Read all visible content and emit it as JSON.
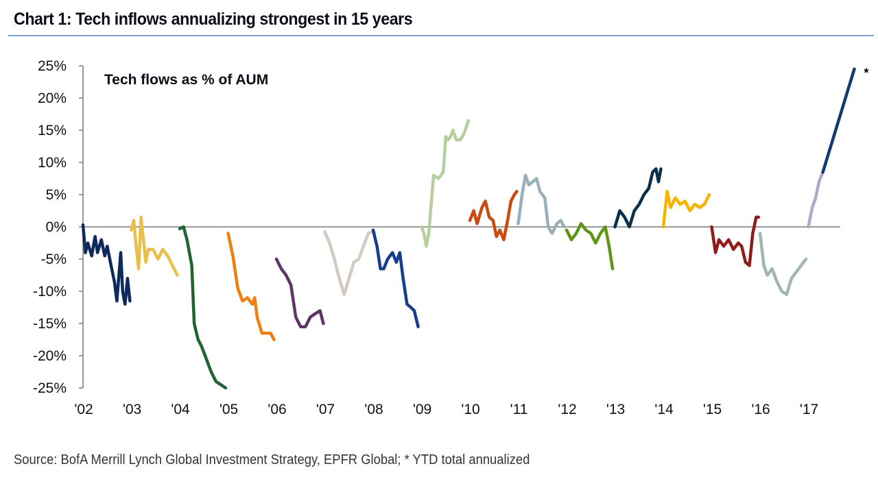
{
  "header": {
    "title": "Chart 1: Tech inflows annualizing strongest in 15 years"
  },
  "footer": {
    "source": "Source: BofA Merrill Lynch Global Investment Strategy, EPFR Global; * YTD total annualized"
  },
  "chart_data": {
    "type": "line",
    "title": "Chart 1: Tech inflows annualizing strongest in 15 years",
    "inner_title": "Tech flows as % of AUM",
    "xlabel": "",
    "ylabel": "",
    "ylim": [
      -25,
      25
    ],
    "xlim": [
      2002,
      2018
    ],
    "y_ticks": [
      25,
      20,
      15,
      10,
      5,
      0,
      -5,
      -10,
      -15,
      -20,
      -25
    ],
    "y_tick_labels": [
      "25%",
      "20%",
      "15%",
      "10%",
      "5%",
      "0%",
      "-5%",
      "-10%",
      "-15%",
      "-20%",
      "-25%"
    ],
    "x_ticks": [
      2002,
      2003,
      2004,
      2005,
      2006,
      2007,
      2008,
      2009,
      2010,
      2011,
      2012,
      2013,
      2014,
      2015,
      2016,
      2017
    ],
    "x_tick_labels": [
      "'02",
      "'03",
      "'04",
      "'05",
      "'06",
      "'07",
      "'08",
      "'09",
      "'10",
      "'11",
      "'12",
      "'13",
      "'14",
      "'15",
      "'16",
      "'17"
    ],
    "grid": false,
    "zero_line": true,
    "annotation": "*",
    "series": [
      {
        "name": "2002",
        "color": "#0e2a5c",
        "x": [
          0,
          0.05,
          0.1,
          0.18,
          0.25,
          0.3,
          0.38,
          0.45,
          0.5,
          0.58,
          0.65,
          0.7,
          0.78,
          0.82,
          0.87,
          0.92,
          0.97
        ],
        "values": [
          0.3,
          -4,
          -2.5,
          -4.5,
          -1.5,
          -4,
          -2,
          -4.5,
          -3,
          -6,
          -8.5,
          -11.5,
          -4,
          -10,
          -12,
          -8,
          -11.5
        ]
      },
      {
        "name": "2003",
        "color": "#e6c04a",
        "x": [
          0,
          0.05,
          0.1,
          0.15,
          0.2,
          0.25,
          0.3,
          0.35,
          0.45,
          0.55,
          0.65,
          0.75,
          0.85,
          0.95
        ],
        "values": [
          -0.5,
          1,
          -3,
          -6.5,
          1.5,
          -2,
          -5.5,
          -3.5,
          -3.5,
          -5,
          -3.5,
          -4.5,
          -6,
          -7.5
        ]
      },
      {
        "name": "2004",
        "color": "#1f6433",
        "x": [
          0,
          0.08,
          0.15,
          0.25,
          0.3,
          0.38,
          0.45,
          0.55,
          0.65,
          0.75,
          0.85,
          0.95
        ],
        "values": [
          -0.3,
          0,
          -2,
          -6,
          -15,
          -17.5,
          -18.5,
          -20.5,
          -22.5,
          -24,
          -24.5,
          -25
        ]
      },
      {
        "name": "2005",
        "color": "#f07f12",
        "x": [
          0,
          0.1,
          0.2,
          0.3,
          0.4,
          0.5,
          0.55,
          0.6,
          0.7,
          0.78,
          0.88,
          0.95
        ],
        "values": [
          -1,
          -4.5,
          -9.5,
          -11.5,
          -11,
          -12,
          -11,
          -14,
          -16.5,
          -16.5,
          -16.5,
          -17.5
        ]
      },
      {
        "name": "2006",
        "color": "#5e3469",
        "x": [
          0,
          0.1,
          0.2,
          0.3,
          0.4,
          0.5,
          0.6,
          0.7,
          0.8,
          0.9,
          0.97
        ],
        "values": [
          -5,
          -6.5,
          -7.5,
          -9,
          -14,
          -15.5,
          -15.5,
          -14,
          -13.5,
          -13,
          -15
        ]
      },
      {
        "name": "2007",
        "color": "#d2cbc1",
        "x": [
          0,
          0.1,
          0.2,
          0.3,
          0.4,
          0.5,
          0.6,
          0.7,
          0.8,
          0.9,
          0.97
        ],
        "values": [
          -0.8,
          -2.5,
          -5,
          -8,
          -10.5,
          -8,
          -5.5,
          -5,
          -3,
          -1,
          -0.8
        ]
      },
      {
        "name": "2008",
        "color": "#173d8c",
        "x": [
          0,
          0.08,
          0.15,
          0.22,
          0.3,
          0.4,
          0.48,
          0.55,
          0.62,
          0.7,
          0.78,
          0.85,
          0.93
        ],
        "values": [
          -0.5,
          -3,
          -6.5,
          -6.5,
          -5,
          -4,
          -5.5,
          -4,
          -8,
          -12,
          -12.5,
          -13,
          -15.5
        ]
      },
      {
        "name": "2009",
        "color": "#b6cf9f",
        "x": [
          0,
          0.05,
          0.1,
          0.15,
          0.25,
          0.35,
          0.45,
          0.5,
          0.55,
          0.6,
          0.65,
          0.72,
          0.8,
          0.88,
          0.97
        ],
        "values": [
          0,
          -1,
          -3,
          -1,
          8,
          7.5,
          8.5,
          14,
          13.5,
          14,
          15,
          13.5,
          13.5,
          14.5,
          16.5
        ]
      },
      {
        "name": "2010",
        "color": "#c94b0d",
        "x": [
          0,
          0.08,
          0.15,
          0.25,
          0.32,
          0.4,
          0.48,
          0.55,
          0.62,
          0.7,
          0.78,
          0.85,
          0.92,
          0.97
        ],
        "values": [
          1,
          2.5,
          0.5,
          3,
          4,
          1.5,
          1,
          -1.5,
          -0.5,
          -2,
          1,
          4,
          5,
          5.5
        ]
      },
      {
        "name": "2011",
        "color": "#9aafba",
        "x": [
          0,
          0.08,
          0.15,
          0.22,
          0.3,
          0.38,
          0.45,
          0.55,
          0.62,
          0.7,
          0.8,
          0.88,
          0.95
        ],
        "values": [
          0.5,
          5,
          8,
          6.5,
          7,
          7.5,
          5.5,
          4.5,
          0,
          -1,
          0.5,
          1,
          0
        ]
      },
      {
        "name": "2012",
        "color": "#5f941a",
        "x": [
          0,
          0.1,
          0.2,
          0.3,
          0.4,
          0.5,
          0.6,
          0.7,
          0.8,
          0.88,
          0.95
        ],
        "values": [
          -0.5,
          -2,
          -1,
          0.5,
          -0.5,
          -1,
          -2.5,
          -1,
          0,
          -3,
          -6.5
        ]
      },
      {
        "name": "2013",
        "color": "#0c3049",
        "x": [
          0,
          0.1,
          0.2,
          0.3,
          0.4,
          0.5,
          0.6,
          0.7,
          0.78,
          0.85,
          0.9,
          0.95
        ],
        "values": [
          0,
          2.5,
          1.5,
          0,
          2.5,
          3.5,
          5,
          6,
          8.5,
          9,
          7,
          9
        ]
      },
      {
        "name": "2014",
        "color": "#f6b300",
        "x": [
          0,
          0.08,
          0.15,
          0.25,
          0.35,
          0.45,
          0.55,
          0.65,
          0.75,
          0.85,
          0.95
        ],
        "values": [
          0,
          5.5,
          3,
          4.5,
          3.5,
          4,
          2.5,
          3.5,
          3,
          3.5,
          5
        ]
      },
      {
        "name": "2015",
        "color": "#8e1c18",
        "x": [
          0,
          0.08,
          0.15,
          0.25,
          0.35,
          0.45,
          0.55,
          0.62,
          0.7,
          0.78,
          0.85,
          0.92,
          0.97
        ],
        "values": [
          0,
          -4,
          -2,
          -3,
          -2,
          -3.5,
          -2.5,
          -3,
          -5.5,
          -6,
          -1,
          1.5,
          1.5
        ]
      },
      {
        "name": "2016",
        "color": "#a1b7a9",
        "x": [
          0,
          0.08,
          0.15,
          0.25,
          0.35,
          0.45,
          0.55,
          0.65,
          0.75,
          0.85,
          0.95
        ],
        "values": [
          -1,
          -6,
          -7.5,
          -6.5,
          -8.5,
          -10,
          -10.5,
          -8,
          -7,
          -6,
          -5
        ]
      },
      {
        "name": "2017 YTD",
        "color": "#b5a5c8",
        "x": [
          0,
          0.08,
          0.15,
          0.22,
          0.3
        ],
        "values": [
          0,
          3,
          4.5,
          7,
          8.5
        ]
      },
      {
        "name": "2017 annualized*",
        "color": "#143a72",
        "x": [
          0.3,
          0.95
        ],
        "values": [
          8.5,
          24.5
        ]
      }
    ]
  }
}
